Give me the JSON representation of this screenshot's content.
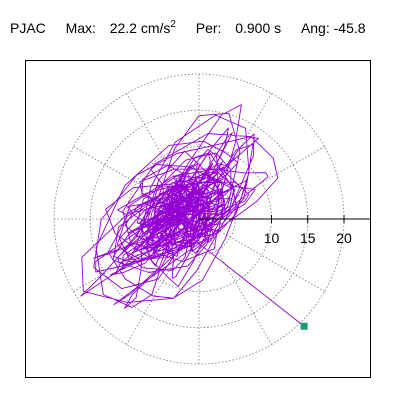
{
  "header": {
    "station": "PJAC",
    "max_label": "Max:",
    "max_value": "22.2",
    "max_unit": "cm/s",
    "max_unit_exp": "2",
    "period_label": "Per:",
    "period_value": "0.900 s",
    "angle_label": "Ang:",
    "angle_value": "-45.8"
  },
  "chart_data": {
    "type": "line",
    "subtype": "polar-particle-motion",
    "title": "PJAC  Max: 22.2 cm/s^2  Per: 0.900 s  Ang: -45.8",
    "radial_ticks": [
      10,
      15,
      20
    ],
    "radial_tick_labels": [
      "10",
      "15",
      "20"
    ],
    "ring_radii": [
      5,
      10,
      15,
      20
    ],
    "angular_grid_deg": [
      0,
      30,
      60,
      90,
      120,
      150,
      180,
      210,
      240,
      270,
      300,
      330
    ],
    "rmax": 20,
    "grid": true,
    "series": [
      {
        "color": "#9400d3",
        "seed": 7,
        "sample_count": 720,
        "components": [
          {
            "period": 3.1,
            "amp_x": 5.0,
            "amp_y": 4.0
          },
          {
            "period": 2.3,
            "amp_x": 4.0,
            "amp_y": 5.0
          },
          {
            "period": 4.7,
            "amp_x": 3.0,
            "amp_y": 3.5
          },
          {
            "period": 1.7,
            "amp_x": 2.5,
            "amp_y": 2.0
          },
          {
            "period": 6.3,
            "amp_x": 2.0,
            "amp_y": 2.5
          },
          {
            "period": 1.1,
            "amp_x": 1.5,
            "amp_y": 1.2
          }
        ],
        "offset": [
          -2.5,
          0.8
        ]
      }
    ],
    "end_point": {
      "x": 14.5,
      "y": -14.8,
      "color": "#1a9e77"
    },
    "colors": {
      "trace": "#9400d3",
      "grid": "#777777",
      "axis": "#000000",
      "end_marker": "#1a9e77"
    }
  }
}
